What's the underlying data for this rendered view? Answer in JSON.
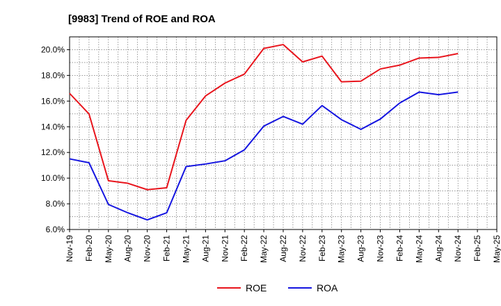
{
  "chart_data": {
    "type": "line",
    "title": "[9983]  Trend of ROE and ROA",
    "xlabel": "",
    "ylabel": "",
    "x": [
      "Nov-19",
      "Feb-20",
      "May-20",
      "Aug-20",
      "Nov-20",
      "Feb-21",
      "May-21",
      "Aug-21",
      "Nov-21",
      "Feb-22",
      "May-22",
      "Aug-22",
      "Nov-22",
      "Feb-23",
      "May-23",
      "Aug-23",
      "Nov-23",
      "Feb-24",
      "May-24",
      "Aug-24",
      "Nov-24",
      "Feb-25",
      "May-25"
    ],
    "ylim": [
      6.0,
      21.0
    ],
    "yticks": [
      6.0,
      8.0,
      10.0,
      12.0,
      14.0,
      16.0,
      18.0,
      20.0
    ],
    "ytick_labels": [
      "6.0%",
      "8.0%",
      "10.0%",
      "12.0%",
      "14.0%",
      "16.0%",
      "18.0%",
      "20.0%"
    ],
    "grid": true,
    "legend_position": "bottom-center",
    "series": [
      {
        "name": "ROE",
        "color": "#e8141c",
        "values": [
          16.6,
          15.0,
          9.8,
          9.6,
          9.1,
          9.25,
          14.5,
          16.4,
          17.4,
          18.1,
          20.1,
          20.4,
          19.05,
          19.5,
          17.5,
          17.55,
          18.5,
          18.8,
          19.35,
          19.4,
          19.7,
          null,
          null
        ]
      },
      {
        "name": "ROA",
        "color": "#1414e0",
        "values": [
          11.5,
          11.2,
          7.95,
          7.3,
          6.75,
          7.3,
          10.9,
          11.1,
          11.35,
          12.2,
          14.05,
          14.8,
          14.2,
          15.65,
          14.55,
          13.8,
          14.6,
          15.85,
          16.7,
          16.5,
          16.7,
          null,
          null
        ]
      }
    ]
  }
}
